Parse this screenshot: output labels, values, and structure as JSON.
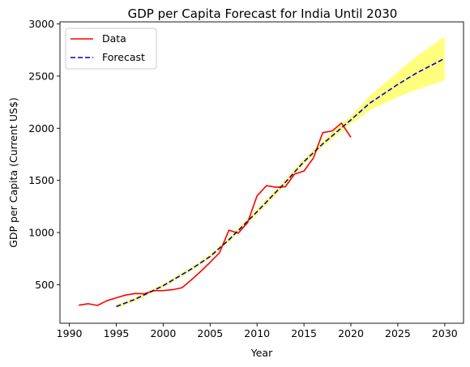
{
  "chart_data": {
    "type": "line",
    "title": "GDP per Capita Forecast for India Until 2030",
    "xlabel": "Year",
    "ylabel": "GDP per Capita (Current US$)",
    "xlim": [
      1989,
      2032
    ],
    "ylim": [
      130,
      3020
    ],
    "x_ticks": [
      1990,
      1995,
      2000,
      2005,
      2010,
      2015,
      2020,
      2025,
      2030
    ],
    "y_ticks": [
      500,
      1000,
      1500,
      2000,
      2500,
      3000
    ],
    "grid": false,
    "legend_position": "top-left",
    "series": [
      {
        "name": "Data",
        "style": "solid",
        "color": "#ff0000",
        "x": [
          1991,
          1992,
          1993,
          1994,
          1995,
          1996,
          1997,
          1998,
          1999,
          2000,
          2001,
          2002,
          2003,
          2004,
          2005,
          2006,
          2007,
          2008,
          2009,
          2010,
          2011,
          2012,
          2013,
          2014,
          2015,
          2016,
          2017,
          2018,
          2019,
          2020
        ],
        "y": [
          303,
          317,
          301,
          346,
          374,
          400,
          415,
          413,
          442,
          443,
          452,
          471,
          546,
          627,
          714,
          806,
          1023,
          993,
          1096,
          1351,
          1449,
          1434,
          1438,
          1560,
          1590,
          1714,
          1958,
          1974,
          2050,
          1913
        ]
      },
      {
        "name": "Forecast",
        "style": "dashed",
        "color": "#0000cc",
        "x": [
          1995,
          1997,
          2000,
          2003,
          2005,
          2007,
          2010,
          2013,
          2015,
          2017,
          2020,
          2022,
          2025,
          2027,
          2030
        ],
        "y": [
          290,
          360,
          490,
          650,
          770,
          930,
          1200,
          1480,
          1680,
          1850,
          2080,
          2240,
          2420,
          2530,
          2670
        ],
        "lower": [
          270,
          340,
          470,
          630,
          750,
          905,
          1170,
          1450,
          1650,
          1820,
          2040,
          2170,
          2300,
          2370,
          2460
        ],
        "upper": [
          310,
          380,
          510,
          670,
          790,
          955,
          1230,
          1510,
          1710,
          1880,
          2120,
          2310,
          2540,
          2690,
          2880
        ],
        "band_color": "#ffff66"
      }
    ]
  }
}
